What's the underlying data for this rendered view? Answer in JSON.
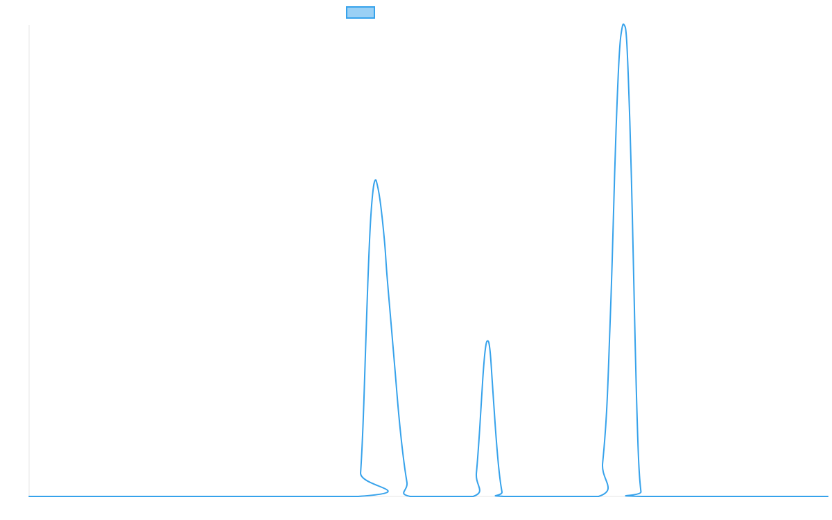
{
  "chart_data": {
    "type": "line",
    "title": "",
    "xlabel": "",
    "ylabel": "",
    "legend": {
      "placement": "top-center",
      "label": ""
    },
    "grid": false,
    "xlim": [
      0,
      100
    ],
    "ylim": [
      0,
      100
    ],
    "series": [
      {
        "color": "#36a2eb",
        "fill": "#9ad0f5",
        "points": [
          [
            0,
            0
          ],
          [
            41.2,
            0
          ],
          [
            41.5,
            5
          ],
          [
            41.8,
            15
          ],
          [
            42.1,
            30
          ],
          [
            42.4,
            45
          ],
          [
            42.7,
            57
          ],
          [
            43.0,
            64
          ],
          [
            43.3,
            67
          ],
          [
            43.6,
            66
          ],
          [
            44.0,
            62
          ],
          [
            44.5,
            54
          ],
          [
            44.8,
            47
          ],
          [
            45.3,
            37
          ],
          [
            45.8,
            27
          ],
          [
            46.3,
            17
          ],
          [
            46.8,
            9
          ],
          [
            47.3,
            3
          ],
          [
            47.7,
            0
          ],
          [
            55.6,
            0
          ],
          [
            56.0,
            5
          ],
          [
            56.4,
            14
          ],
          [
            56.8,
            25
          ],
          [
            57.1,
            31
          ],
          [
            57.4,
            33
          ],
          [
            57.7,
            31
          ],
          [
            58.0,
            24
          ],
          [
            58.4,
            14
          ],
          [
            58.8,
            6
          ],
          [
            59.2,
            1
          ],
          [
            59.5,
            0
          ],
          [
            71.3,
            0
          ],
          [
            71.8,
            7
          ],
          [
            72.3,
            18
          ],
          [
            72.7,
            35
          ],
          [
            73.0,
            50
          ],
          [
            73.3,
            68
          ],
          [
            73.6,
            83
          ],
          [
            73.9,
            94
          ],
          [
            74.2,
            99
          ],
          [
            74.5,
            100
          ],
          [
            74.8,
            97
          ],
          [
            75.1,
            85
          ],
          [
            75.4,
            68
          ],
          [
            75.7,
            46
          ],
          [
            76.0,
            24
          ],
          [
            76.3,
            8
          ],
          [
            76.6,
            1
          ],
          [
            76.8,
            0
          ],
          [
            100,
            0
          ]
        ]
      }
    ]
  }
}
